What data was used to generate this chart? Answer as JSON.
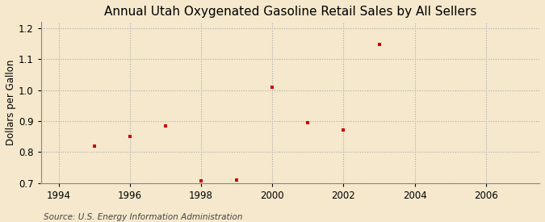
{
  "title": "Annual Utah Oxygenated Gasoline Retail Sales by All Sellers",
  "ylabel": "Dollars per Gallon",
  "source": "Source: U.S. Energy Information Administration",
  "background_color": "#f5e8cc",
  "plot_bg_color": "#f5e8cc",
  "marker_color": "#cc0000",
  "xlim": [
    1993.5,
    2007.5
  ],
  "ylim": [
    0.7,
    1.22
  ],
  "xticks": [
    1994,
    1996,
    1998,
    2000,
    2002,
    2004,
    2006
  ],
  "yticks": [
    0.7,
    0.8,
    0.9,
    1.0,
    1.1,
    1.2
  ],
  "x": [
    1995,
    1996,
    1997,
    1998,
    1999,
    2000,
    2001,
    2002,
    2003
  ],
  "y": [
    0.82,
    0.85,
    0.885,
    0.707,
    0.71,
    1.01,
    0.895,
    0.872,
    1.148
  ],
  "grid_color": "#aaaaaa",
  "title_fontsize": 11,
  "label_fontsize": 8.5,
  "tick_fontsize": 8.5,
  "source_fontsize": 7.5
}
